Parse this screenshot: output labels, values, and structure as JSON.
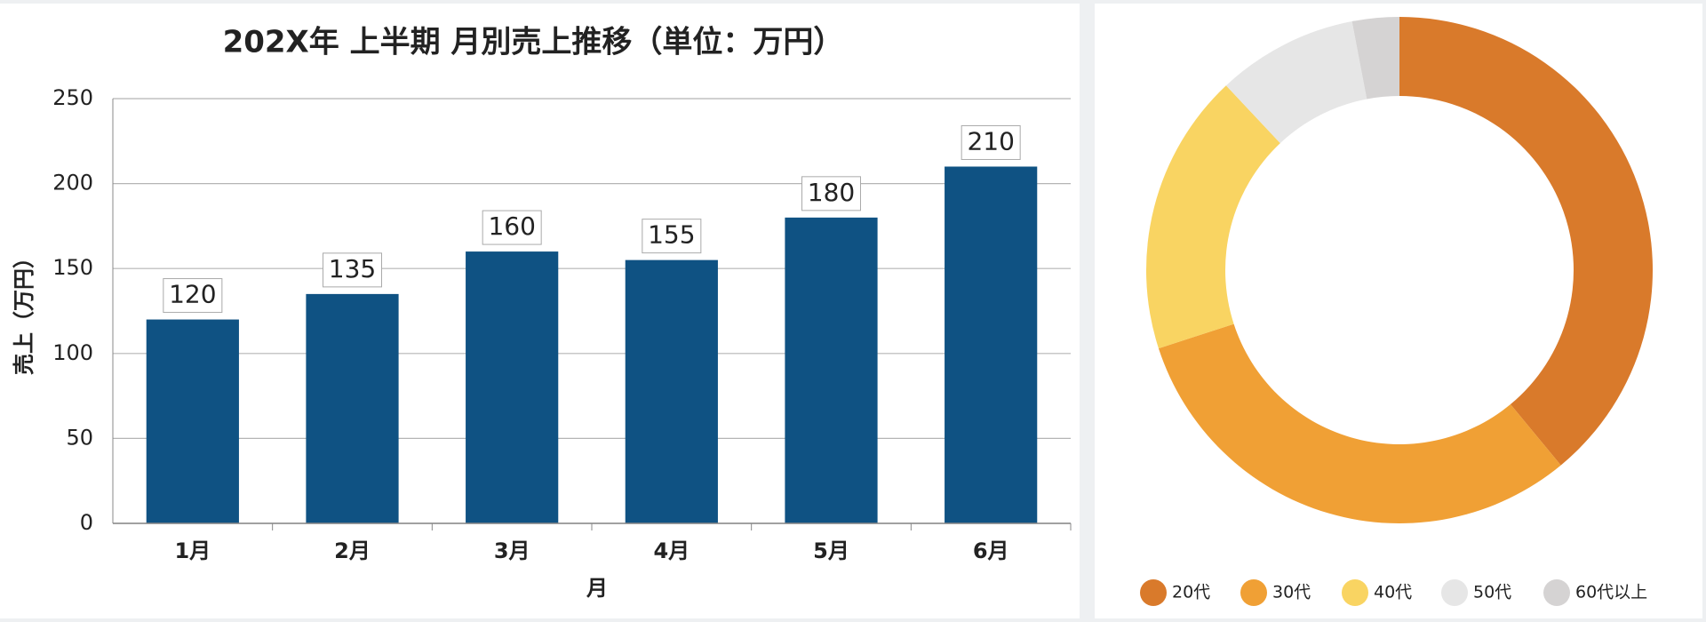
{
  "chart_data": [
    {
      "type": "bar",
      "title": "202X年 上半期 月別売上推移（単位：万円）",
      "x_label": "月",
      "y_label": "売上（万円）",
      "categories": [
        "1月",
        "2月",
        "3月",
        "4月",
        "5月",
        "6月"
      ],
      "values": [
        120,
        135,
        160,
        155,
        180,
        210
      ],
      "color": "#0f5283",
      "ylim": [
        0,
        250
      ],
      "yticks": [
        0,
        50,
        100,
        150,
        200,
        250
      ],
      "grid": true
    },
    {
      "type": "pie",
      "donut": true,
      "categories": [
        "20代",
        "30代",
        "40代",
        "50代",
        "60代以上"
      ],
      "values": [
        39,
        31,
        18,
        9,
        3
      ],
      "colors": [
        "#d97a2b",
        "#f0a035",
        "#f9d462",
        "#e6e6e6",
        "#d5d3d3"
      ],
      "legend": "bottom"
    }
  ]
}
